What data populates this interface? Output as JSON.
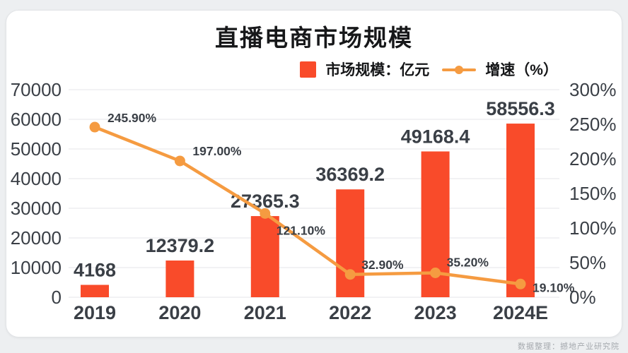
{
  "title": "直播电商市场规模",
  "legend": {
    "bar_label": "市场规模：亿元",
    "line_label": "增速（%）"
  },
  "page": {
    "source_note": "数据整理：撼地产业研究院"
  },
  "colors": {
    "bar": "#f94b2a",
    "line": "#f59b41",
    "grid": "#e9ebee",
    "text_dark": "#3a3f46",
    "background_card": "#ffffff",
    "background_page": "#edeff1"
  },
  "chart_data": {
    "type": "bar",
    "subtype": "bar+line combo",
    "title": "直播电商市场规模",
    "categories": [
      "2019",
      "2020",
      "2021",
      "2022",
      "2023",
      "2024E"
    ],
    "series": [
      {
        "name": "市场规模：亿元",
        "type": "bar",
        "axis": "left",
        "color": "#f94b2a",
        "values": [
          4168,
          12379.2,
          27365.3,
          36369.2,
          49168.4,
          58556.3
        ],
        "labels": [
          "4168",
          "12379.2",
          "27365.3",
          "36369.2",
          "49168.4",
          "58556.3"
        ]
      },
      {
        "name": "增速（%）",
        "type": "line",
        "axis": "right",
        "color": "#f59b41",
        "values": [
          245.9,
          197.0,
          121.1,
          32.9,
          35.2,
          19.1
        ],
        "labels": [
          "245.90%",
          "197.00%",
          "121.10%",
          "32.90%",
          "35.20%",
          "19.10%"
        ],
        "label_offsets": [
          {
            "dx": 18,
            "dy": -7
          },
          {
            "dx": 18,
            "dy": -8
          },
          {
            "dx": 16,
            "dy": 30
          },
          {
            "dx": 16,
            "dy": -8
          },
          {
            "dx": 16,
            "dy": -9
          },
          {
            "dx": 17,
            "dy": 11
          }
        ]
      }
    ],
    "left_axis": {
      "min": 0,
      "max": 70000,
      "step": 10000,
      "ticks": [
        "0",
        "10000",
        "20000",
        "30000",
        "40000",
        "50000",
        "60000",
        "70000"
      ]
    },
    "right_axis": {
      "min": 0,
      "max": 300,
      "step": 50,
      "ticks": [
        "0%",
        "50%",
        "100%",
        "150%",
        "200%",
        "250%",
        "300%"
      ]
    },
    "grid": true,
    "legend_position": "top-right",
    "xlabel": "",
    "ylabel_left": "亿元",
    "ylabel_right": "%"
  }
}
